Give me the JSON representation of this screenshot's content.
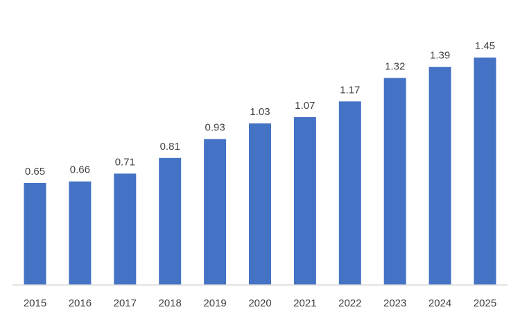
{
  "chart_data": {
    "type": "bar",
    "categories": [
      "2015",
      "2016",
      "2017",
      "2018",
      "2019",
      "2020",
      "2021",
      "2022",
      "2023",
      "2024",
      "2025"
    ],
    "values": [
      0.65,
      0.66,
      0.71,
      0.81,
      0.93,
      1.03,
      1.07,
      1.17,
      1.32,
      1.39,
      1.45
    ],
    "value_labels": [
      "0.65",
      "0.66",
      "0.71",
      "0.81",
      "0.93",
      "1.03",
      "1.07",
      "1.17",
      "1.32",
      "1.39",
      "1.45"
    ],
    "title": "",
    "xlabel": "",
    "ylabel": "",
    "ylim": [
      0,
      1.6
    ],
    "grid": false,
    "legend": "none",
    "bar_color": "#4472C4",
    "axis_color": "#D9D9D9",
    "text_color": "#404040"
  }
}
